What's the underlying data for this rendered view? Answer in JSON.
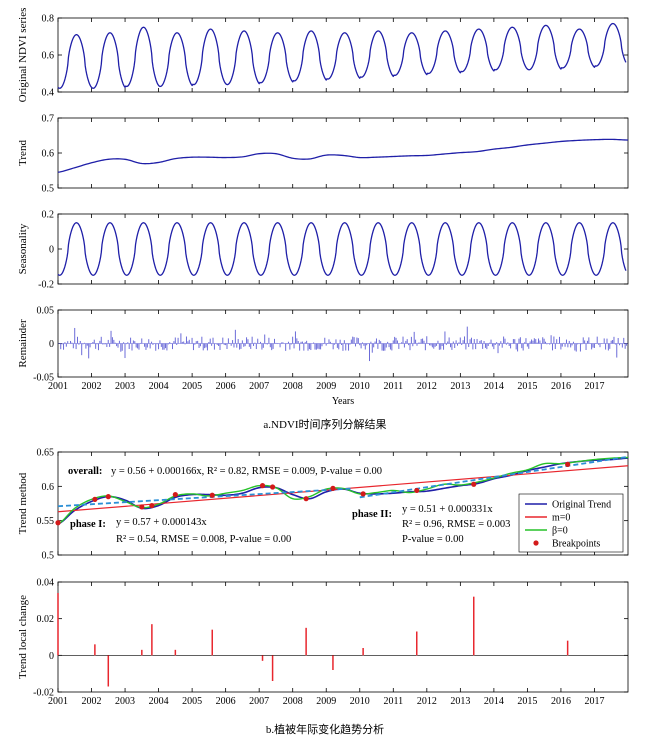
{
  "years": [
    "2001",
    "2002",
    "2003",
    "2004",
    "2005",
    "2006",
    "2007",
    "2008",
    "2009",
    "2010",
    "2011",
    "2012",
    "2013",
    "2014",
    "2015",
    "2016",
    "2017"
  ],
  "xlabel": "Years",
  "caption_a": "a.NDVI时间序列分解结果",
  "caption_b": "b.植被年际变化趋势分析",
  "colors": {
    "series": "#1f1fa8",
    "remainder": "#6b6bd8",
    "m0": "#e8262d",
    "beta": "#27c229",
    "dash": "#2b8fd6",
    "breakpoint": "#d31a1a"
  },
  "chart_data": [
    {
      "type": "line",
      "ylabel": "Original NDVI series",
      "ylim": [
        0.4,
        0.8
      ],
      "yticks": [
        "0.4",
        "0.6",
        "0.8"
      ],
      "xlim": [
        2001,
        2018
      ],
      "cycle": {
        "base": [
          0.42,
          0.42,
          0.43,
          0.43,
          0.44,
          0.44,
          0.45,
          0.46,
          0.47,
          0.48,
          0.49,
          0.5,
          0.51,
          0.52,
          0.52,
          0.53,
          0.54
        ],
        "peak": [
          0.71,
          0.72,
          0.75,
          0.72,
          0.74,
          0.73,
          0.72,
          0.73,
          0.72,
          0.73,
          0.72,
          0.73,
          0.74,
          0.75,
          0.76,
          0.74,
          0.77
        ]
      }
    },
    {
      "type": "line",
      "ylabel": "Trend",
      "ylim": [
        0.5,
        0.7
      ],
      "yticks": [
        "0.5",
        "0.6",
        "0.7"
      ],
      "xlim": [
        2001,
        2018
      ],
      "x": [
        2001.0,
        2001.5,
        2002.0,
        2002.5,
        2003.0,
        2003.5,
        2004.0,
        2004.5,
        2005.0,
        2005.5,
        2006.0,
        2006.5,
        2007.0,
        2007.5,
        2008.0,
        2008.5,
        2009.0,
        2009.5,
        2010.0,
        2010.5,
        2011.0,
        2011.5,
        2012.0,
        2012.5,
        2013.0,
        2013.5,
        2014.0,
        2014.5,
        2015.0,
        2015.5,
        2016.0,
        2016.5,
        2017.0,
        2017.5,
        2018.0
      ],
      "values": [
        0.545,
        0.558,
        0.572,
        0.582,
        0.582,
        0.57,
        0.573,
        0.584,
        0.588,
        0.588,
        0.587,
        0.589,
        0.598,
        0.598,
        0.585,
        0.583,
        0.594,
        0.593,
        0.587,
        0.588,
        0.59,
        0.592,
        0.593,
        0.597,
        0.601,
        0.604,
        0.611,
        0.616,
        0.623,
        0.628,
        0.633,
        0.636,
        0.638,
        0.639,
        0.637
      ]
    },
    {
      "type": "line",
      "ylabel": "Seasonality",
      "ylim": [
        -0.2,
        0.2
      ],
      "yticks": [
        "-0.2",
        "0",
        "0.2"
      ],
      "xlim": [
        2001,
        2018
      ],
      "amplitude": 0.15
    },
    {
      "type": "bar",
      "ylabel": "Remainder",
      "ylim": [
        -0.05,
        0.05
      ],
      "yticks": [
        "-0.05",
        "0",
        "0.05"
      ],
      "xlim": [
        2001,
        2018
      ],
      "seed": 7
    },
    {
      "type": "line",
      "ylabel": "Trend method",
      "ylim": [
        0.5,
        0.65
      ],
      "yticks": [
        "0.5",
        "0.55",
        "0.6",
        "0.65"
      ],
      "xlim": [
        2001,
        2018
      ],
      "series": [
        {
          "name": "Original Trend",
          "x": [
            2001.0,
            2001.5,
            2002.0,
            2002.5,
            2003.0,
            2003.5,
            2004.0,
            2004.5,
            2005.0,
            2005.5,
            2006.0,
            2006.5,
            2007.0,
            2007.5,
            2008.0,
            2008.5,
            2009.0,
            2009.5,
            2010.0,
            2010.5,
            2011.0,
            2011.5,
            2012.0,
            2012.5,
            2013.0,
            2013.5,
            2014.0,
            2014.5,
            2015.0,
            2015.5,
            2016.0,
            2016.5,
            2017.0,
            2017.5,
            2018.0
          ],
          "values": [
            0.545,
            0.565,
            0.578,
            0.585,
            0.58,
            0.568,
            0.572,
            0.584,
            0.588,
            0.588,
            0.587,
            0.59,
            0.598,
            0.598,
            0.588,
            0.582,
            0.592,
            0.596,
            0.59,
            0.589,
            0.59,
            0.592,
            0.593,
            0.597,
            0.601,
            0.604,
            0.611,
            0.616,
            0.623,
            0.628,
            0.633,
            0.636,
            0.638,
            0.639,
            0.641
          ]
        },
        {
          "name": "m=0",
          "x": [
            2001,
            2018
          ],
          "values": [
            0.563,
            0.63
          ]
        },
        {
          "name": "β=0",
          "x": [
            2001.0,
            2001.5,
            2002.0,
            2002.5,
            2003.0,
            2003.5,
            2004.0,
            2004.5,
            2005.0,
            2005.5,
            2006.0,
            2006.5,
            2007.0,
            2007.5,
            2008.0,
            2008.5,
            2009.0,
            2009.5,
            2010.0,
            2010.5,
            2011.0,
            2011.5,
            2012.0,
            2012.5,
            2013.0,
            2013.5,
            2014.0,
            2014.5,
            2015.0,
            2015.5,
            2016.0,
            2016.5,
            2017.0,
            2017.5,
            2018.0
          ],
          "values": [
            0.545,
            0.568,
            0.581,
            0.586,
            0.578,
            0.569,
            0.574,
            0.586,
            0.589,
            0.586,
            0.59,
            0.594,
            0.601,
            0.598,
            0.582,
            0.585,
            0.596,
            0.597,
            0.589,
            0.591,
            0.594,
            0.591,
            0.596,
            0.603,
            0.602,
            0.606,
            0.612,
            0.619,
            0.624,
            0.633,
            0.633,
            0.636,
            0.639,
            0.641,
            0.642
          ]
        },
        {
          "name": "Breakpoints",
          "x": [
            2001.0,
            2002.1,
            2002.5,
            2003.5,
            2003.8,
            2004.5,
            2005.6,
            2007.1,
            2007.4,
            2008.4,
            2009.2,
            2010.1,
            2011.7,
            2013.4,
            2016.2
          ],
          "values": [
            0.547,
            0.581,
            0.585,
            0.57,
            0.572,
            0.588,
            0.587,
            0.601,
            0.599,
            0.582,
            0.597,
            0.589,
            0.594,
            0.603,
            0.632
          ]
        }
      ],
      "fit_overall": {
        "x": [
          2001,
          2018
        ],
        "values": [
          0.568,
          0.64
        ]
      },
      "fit_phase1": {
        "x": [
          2001,
          2009.8
        ],
        "values": [
          0.571,
          0.597
        ]
      },
      "fit_phase2": {
        "x": [
          2010,
          2018
        ],
        "values": [
          0.584,
          0.643
        ]
      },
      "annotations": {
        "overall_label": "overall:",
        "overall_eq": "y = 0.56 + 0.000166x, R² = 0.82, RMSE = 0.009, P-value = 0.00",
        "phase1_label": "phase I:",
        "phase1_eq": "y = 0.57 + 0.000143x",
        "phase1_stats": "R² = 0.54, RMSE = 0.008, P-value = 0.00",
        "phase2_label": "phase II:",
        "phase2_eq": "y = 0.51 + 0.000331x",
        "phase2_stats": "R² = 0.96, RMSE = 0.003",
        "phase2_p": "P-value = 0.00"
      },
      "legend": {
        "placement": "center-right"
      }
    },
    {
      "type": "bar",
      "ylabel": "Trend local change",
      "ylim": [
        -0.02,
        0.04
      ],
      "yticks": [
        "-0.02",
        "0",
        "0.02",
        "0.04"
      ],
      "xlim": [
        2001,
        2018
      ],
      "x": [
        2001.0,
        2002.1,
        2002.5,
        2003.5,
        2003.8,
        2004.5,
        2005.6,
        2007.1,
        2007.4,
        2008.4,
        2009.2,
        2010.1,
        2011.7,
        2013.4,
        2016.2
      ],
      "values": [
        0.034,
        0.006,
        -0.017,
        0.003,
        0.017,
        0.003,
        0.014,
        -0.003,
        -0.014,
        0.015,
        -0.008,
        0.004,
        0.013,
        0.032,
        0.008
      ]
    }
  ]
}
